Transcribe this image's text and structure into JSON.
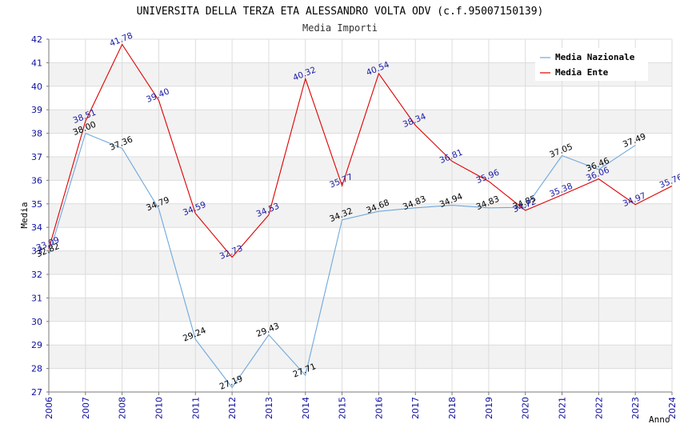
{
  "chart_data": {
    "type": "line",
    "title": "UNIVERSITA DELLA TERZA ETA ALESSANDRO VOLTA ODV (c.f.95007150139)",
    "subtitle": "Media Importi",
    "xlabel": "Anno",
    "ylabel": "Media",
    "ylim": [
      27,
      42
    ],
    "yticks": [
      "27",
      "28",
      "29",
      "30",
      "31",
      "32",
      "33",
      "34",
      "35",
      "36",
      "37",
      "38",
      "39",
      "40",
      "41",
      "42"
    ],
    "categories": [
      "2006",
      "2007",
      "2008",
      "2010",
      "2011",
      "2012",
      "2013",
      "2014",
      "2015",
      "2016",
      "2017",
      "2018",
      "2019",
      "2020",
      "2021",
      "2022",
      "2023",
      "2024"
    ],
    "grid": true,
    "legend_position": "top-right",
    "series": [
      {
        "name": "Media Nazionale",
        "color": "#6fa8dc",
        "label_color": "#000000",
        "values": [
          32.82,
          38.0,
          37.36,
          34.79,
          29.24,
          27.19,
          29.43,
          27.71,
          34.32,
          34.68,
          34.83,
          34.94,
          34.83,
          34.85,
          37.05,
          36.46,
          37.49,
          null
        ],
        "labels": [
          "32.82",
          "38.00",
          "37.36",
          "34.79",
          "29.24",
          "27.19",
          "29.43",
          "27.71",
          "34.32",
          "34.68",
          "34.83",
          "34.94",
          "34.83",
          "34.85",
          "37.05",
          "36.46",
          "37.49",
          ""
        ]
      },
      {
        "name": "Media Ente",
        "color": "#dd0000",
        "label_color": "#1a1aa6",
        "values": [
          33.09,
          38.51,
          41.78,
          39.4,
          34.59,
          32.73,
          34.53,
          40.32,
          35.77,
          40.54,
          38.34,
          36.81,
          35.96,
          34.72,
          35.38,
          36.06,
          34.97,
          35.76
        ],
        "labels": [
          "33.09",
          "38.51",
          "41.78",
          "39.40",
          "34.59",
          "32.73",
          "34.53",
          "40.32",
          "35.77",
          "40.54",
          "38.34",
          "36.81",
          "35.96",
          "34.72",
          "35.38",
          "36.06",
          "34.97",
          "35.76"
        ]
      }
    ]
  }
}
